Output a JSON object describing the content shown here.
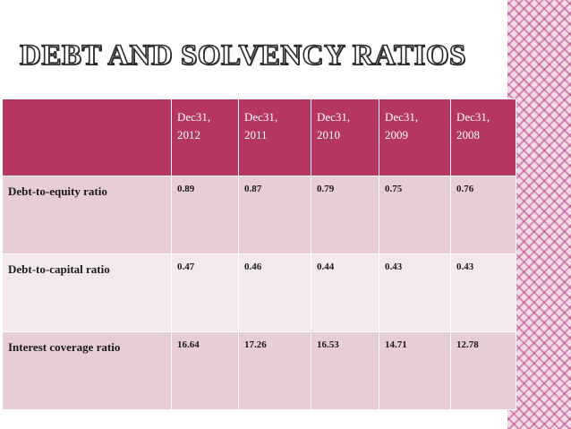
{
  "slide": {
    "title": "DEBT AND SOLVENCY RATIOS"
  },
  "table": {
    "columns": [
      {
        "line1": "Dec31,",
        "line2": "2012"
      },
      {
        "line1": "Dec31,",
        "line2": "2011"
      },
      {
        "line1": "Dec31,",
        "line2": "2010"
      },
      {
        "line1": "Dec31,",
        "line2": "2009"
      },
      {
        "line1": "Dec31,",
        "line2": "2008"
      }
    ],
    "rows": [
      {
        "label": "Debt-to-equity ratio",
        "values": [
          "0.89",
          "0.87",
          "0.79",
          "0.75",
          "0.76"
        ]
      },
      {
        "label": "Debt-to-capital ratio",
        "values": [
          "0.47",
          "0.46",
          "0.44",
          "0.43",
          "0.43"
        ]
      },
      {
        "label": "Interest coverage ratio",
        "values": [
          "16.64",
          "17.26",
          "16.53",
          "14.71",
          "12.78"
        ]
      }
    ]
  },
  "colors": {
    "header": "#b5375f",
    "row_dark": "#e6cdd6",
    "row_light": "#f3e8ec",
    "side_pattern": "#be468c"
  }
}
